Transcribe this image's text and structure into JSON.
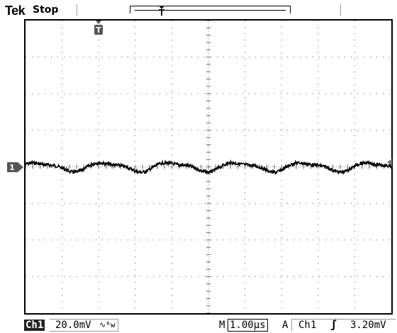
{
  "header": {
    "brand": "Tek",
    "acquisition_status": "Stop"
  },
  "markers": {
    "trigger_position": "T",
    "channel_ground": "1"
  },
  "footer": {
    "channel": "Ch1",
    "volts_per_div": "20.0mV",
    "coupling_icon": "bandwidth-limit-icon",
    "timebase_prefix": "M",
    "time_per_div": "1.00µs",
    "trigger_mode_prefix": "A",
    "trigger_source": "Ch1",
    "trigger_slope_icon": "rising-edge-icon",
    "trigger_level": "3.20mV"
  },
  "colors": {
    "trace": "#000000",
    "grid_dots": "#555555",
    "background": "#ffffff"
  },
  "waveform": {
    "cycles_shown": 5.5,
    "description_units": "divisions",
    "baseline_div_from_top": 4.0,
    "peak_to_peak_div": 0.3
  }
}
